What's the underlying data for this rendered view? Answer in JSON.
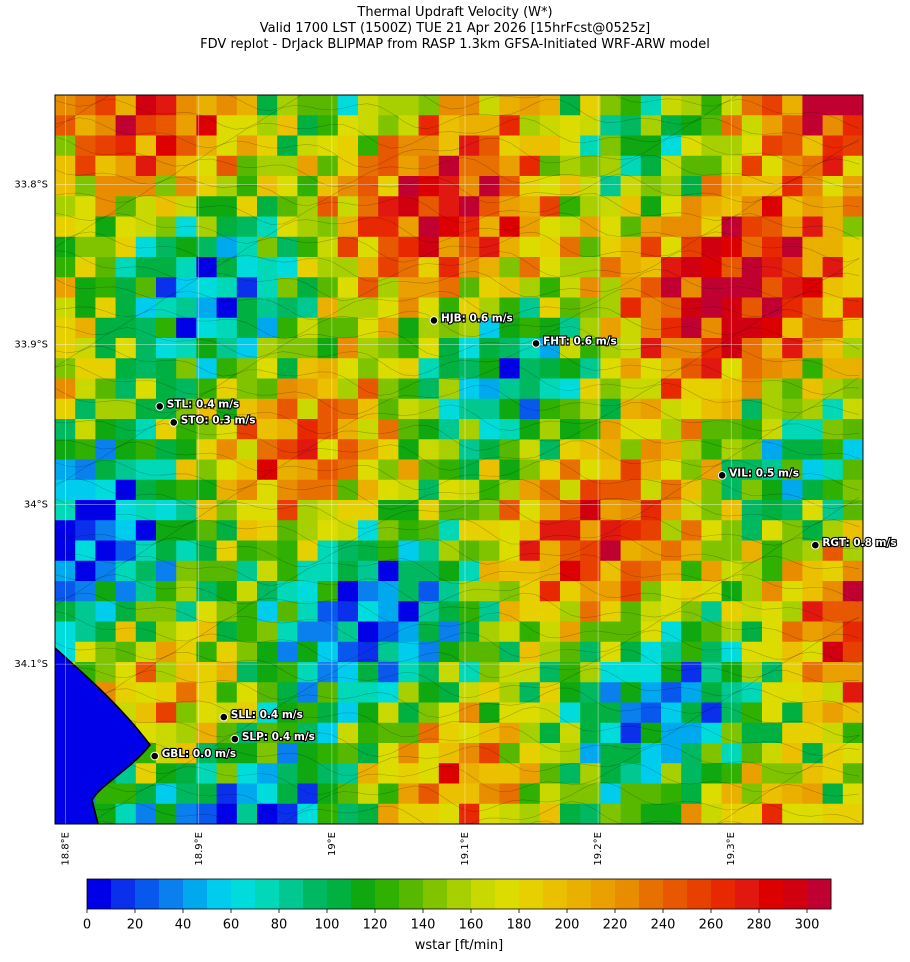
{
  "title": {
    "lines": [
      "Thermal Updraft Velocity (W*)",
      "Valid 1700 LST (1500Z) TUE 21 Apr 2026 [15hrFcst@0525z]",
      "FDV replot - DrJack BLIPMAP from RASP 1.3km GFSA-Initiated WRF-ARW model"
    ]
  },
  "map": {
    "lonlim": [
      18.792,
      19.399
    ],
    "latlim": [
      33.744,
      34.2
    ],
    "xticks": [
      {
        "value": 18.8,
        "label": "18.8°E"
      },
      {
        "value": 18.9,
        "label": "18.9°E"
      },
      {
        "value": 19.0,
        "label": "19°E"
      },
      {
        "value": 19.1,
        "label": "19.1°E"
      },
      {
        "value": 19.2,
        "label": "19.2°E"
      },
      {
        "value": 19.3,
        "label": "19.3°E"
      }
    ],
    "yticks": [
      {
        "value": 33.8,
        "label": "33.8°S"
      },
      {
        "value": 33.9,
        "label": "33.9°S"
      },
      {
        "value": 34.0,
        "label": "34°S"
      },
      {
        "value": 34.1,
        "label": "34.1°S"
      }
    ],
    "stations": [
      {
        "label": "HJB: 0.6 m/s",
        "lon": 19.0767,
        "lat": 33.885
      },
      {
        "label": "FHT: 0.6 m/s",
        "lon": 19.1534,
        "lat": 33.8994
      },
      {
        "label": "STL: 0.4 m/s",
        "lon": 18.8707,
        "lat": 33.9388
      },
      {
        "label": "STO: 0.3 m/s",
        "lon": 18.8812,
        "lat": 33.9488
      },
      {
        "label": "VIL: 0.5 m/s",
        "lon": 19.2932,
        "lat": 33.9819
      },
      {
        "label": "RGT: 0.8 m/s",
        "lon": 19.3632,
        "lat": 34.0256
      },
      {
        "label": "SLL: 0.4 m/s",
        "lon": 18.9188,
        "lat": 34.1331
      },
      {
        "label": "SLP: 0.4 m/s",
        "lon": 18.9271,
        "lat": 34.1469
      },
      {
        "label": "GBL: 0.0 m/s",
        "lon": 18.8669,
        "lat": 34.1575
      }
    ]
  },
  "colorbar": {
    "label": "wstar [ft/min]",
    "range": [
      0,
      310
    ],
    "ticks": [
      0,
      20,
      40,
      60,
      80,
      100,
      120,
      140,
      160,
      180,
      200,
      220,
      240,
      260,
      280,
      300
    ],
    "colors": [
      "#0000e8",
      "#0a30ec",
      "#0858ee",
      "#0a80ee",
      "#00a8ee",
      "#00ccee",
      "#00dcdc",
      "#00d8b8",
      "#00c890",
      "#00b860",
      "#00b040",
      "#10a810",
      "#30b000",
      "#58b800",
      "#80c400",
      "#a8d000",
      "#c8d800",
      "#dcdc00",
      "#e6d000",
      "#eac000",
      "#eab000",
      "#eaa000",
      "#e88c00",
      "#e87000",
      "#e85800",
      "#e84000",
      "#e82800",
      "#e01810",
      "#dc0000",
      "#d00010",
      "#c00030"
    ]
  }
}
